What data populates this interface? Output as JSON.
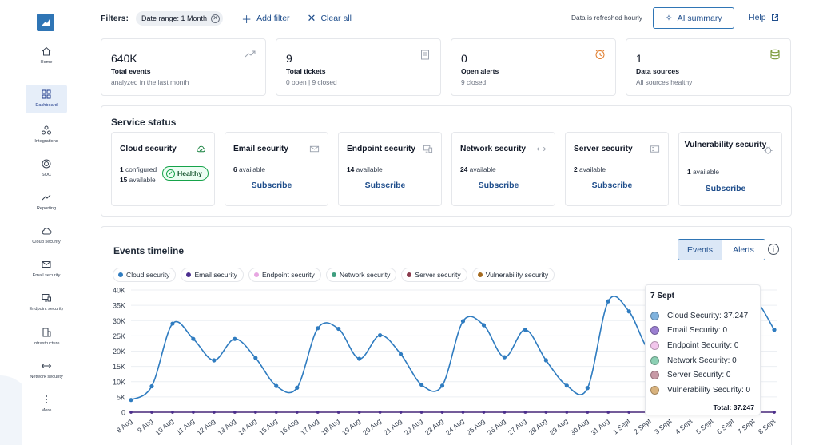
{
  "sidebar": {
    "items": [
      {
        "key": "home",
        "label": "Home",
        "icon": "home-icon"
      },
      {
        "key": "dashboard",
        "label": "Dashboard",
        "icon": "dashboard-icon",
        "active": true
      },
      {
        "key": "integrations",
        "label": "Integrations",
        "icon": "integrations-icon"
      },
      {
        "key": "soc",
        "label": "SOC",
        "icon": "soc-icon"
      },
      {
        "key": "reporting",
        "label": "Reporting",
        "icon": "reporting-icon"
      },
      {
        "key": "cloud",
        "label": "Cloud security",
        "icon": "cloud-icon"
      },
      {
        "key": "email",
        "label": "Email security",
        "icon": "mail-icon"
      },
      {
        "key": "endpoint",
        "label": "Endpoint security",
        "icon": "monitor-icon"
      },
      {
        "key": "infrastructure",
        "label": "Infrastructure",
        "icon": "building-icon"
      },
      {
        "key": "network",
        "label": "Network security",
        "icon": "network-icon"
      },
      {
        "key": "more",
        "label": "More",
        "icon": "more-icon"
      }
    ]
  },
  "topbar": {
    "filters_label": "Filters:",
    "chip_label": "Date range: 1 Month",
    "add_filter": "Add filter",
    "clear_all": "Clear all",
    "refresh_note": "Data is refreshed hourly",
    "ai_summary": "AI summary",
    "help": "Help"
  },
  "stats": [
    {
      "value": "640K",
      "name": "Total events",
      "sub": "analyzed in the last month",
      "icon": "trend-icon"
    },
    {
      "value": "9",
      "name": "Total tickets",
      "sub": "0 open | 9 closed",
      "icon": "clipboard-icon"
    },
    {
      "value": "0",
      "name": "Open alerts",
      "sub": "9 closed",
      "icon": "alarm-icon"
    },
    {
      "value": "1",
      "name": "Data sources",
      "sub": "All sources healthy",
      "icon": "database-icon"
    }
  ],
  "service_status": {
    "title": "Service status",
    "subscribe_label": "Subscribe",
    "cloud": {
      "title": "Cloud security",
      "configured_count": "1",
      "configured_text": "configured",
      "available_count": "15",
      "available_text": "available",
      "badge": "Healthy"
    },
    "services": [
      {
        "title": "Email security",
        "count": "6",
        "text": "available",
        "icon": "mail-icon"
      },
      {
        "title": "Endpoint security",
        "count": "14",
        "text": "available",
        "icon": "monitor-icon"
      },
      {
        "title": "Network security",
        "count": "24",
        "text": "available",
        "icon": "network-icon"
      },
      {
        "title": "Server security",
        "count": "2",
        "text": "available",
        "icon": "server-icon"
      },
      {
        "title": "Vulnerability security",
        "count": "1",
        "text": "available",
        "icon": "bug-icon"
      }
    ]
  },
  "timeline": {
    "title": "Events timeline",
    "toggle_events": "Events",
    "toggle_alerts": "Alerts",
    "info_glyph": "i",
    "tooltip": {
      "title": "7 Sept",
      "rows": [
        {
          "label": "Cloud Security: 37.247",
          "color": "#7fb2dd"
        },
        {
          "label": "Email Security: 0",
          "color": "#9b7fd1"
        },
        {
          "label": "Endpoint Security: 0",
          "color": "#f2c6ec"
        },
        {
          "label": "Network Security: 0",
          "color": "#8ccfb3"
        },
        {
          "label": "Server Security: 0",
          "color": "#c79aa6"
        },
        {
          "label": "Vulnerability Security: 0",
          "color": "#d8b27d"
        }
      ],
      "total": "Total: 37.247"
    }
  },
  "chart_data": {
    "type": "line",
    "title": "",
    "xlabel": "",
    "ylabel": "",
    "ylim": [
      0,
      40000
    ],
    "yticks": [
      "0",
      "5K",
      "10K",
      "15K",
      "20K",
      "25K",
      "30K",
      "35K",
      "40K"
    ],
    "grid": true,
    "legend_position": "top-left",
    "categories": [
      "8 Aug",
      "9 Aug",
      "10 Aug",
      "11 Aug",
      "12 Aug",
      "13 Aug",
      "14 Aug",
      "15 Aug",
      "16 Aug",
      "17 Aug",
      "18 Aug",
      "19 Aug",
      "20 Aug",
      "21 Aug",
      "22 Aug",
      "23 Aug",
      "24 Aug",
      "25 Aug",
      "26 Aug",
      "27 Aug",
      "28 Aug",
      "29 Aug",
      "30 Aug",
      "31 Aug",
      "1 Sept",
      "2 Sept",
      "3 Sept",
      "4 Sept",
      "5 Sept",
      "6 Sept",
      "7 Sept",
      "8 Sept"
    ],
    "series": [
      {
        "name": "Cloud security",
        "color": "#2f7cc0",
        "values": [
          4000,
          8500,
          29000,
          24000,
          17000,
          24000,
          17800,
          8600,
          8000,
          27500,
          27300,
          17500,
          25200,
          19000,
          9000,
          8700,
          29800,
          28500,
          18000,
          27000,
          17000,
          8700,
          7900,
          36300,
          33000,
          20000,
          22000,
          30000,
          32000,
          35000,
          37247,
          27000
        ]
      },
      {
        "name": "Email security",
        "color": "#4b2e8f",
        "values": [
          0,
          0,
          0,
          0,
          0,
          0,
          0,
          0,
          0,
          0,
          0,
          0,
          0,
          0,
          0,
          0,
          0,
          0,
          0,
          0,
          0,
          0,
          0,
          0,
          0,
          0,
          0,
          0,
          0,
          0,
          0,
          0
        ]
      },
      {
        "name": "Endpoint security",
        "color": "#e7a6e1",
        "values": [
          0,
          0,
          0,
          0,
          0,
          0,
          0,
          0,
          0,
          0,
          0,
          0,
          0,
          0,
          0,
          0,
          0,
          0,
          0,
          0,
          0,
          0,
          0,
          0,
          0,
          0,
          0,
          0,
          0,
          0,
          0,
          0
        ]
      },
      {
        "name": "Network security",
        "color": "#3f9e7f",
        "values": [
          0,
          0,
          0,
          0,
          0,
          0,
          0,
          0,
          0,
          0,
          0,
          0,
          0,
          0,
          0,
          0,
          0,
          0,
          0,
          0,
          0,
          0,
          0,
          0,
          0,
          0,
          0,
          0,
          0,
          0,
          0,
          0
        ]
      },
      {
        "name": "Server security",
        "color": "#8a3a4c",
        "values": [
          0,
          0,
          0,
          0,
          0,
          0,
          0,
          0,
          0,
          0,
          0,
          0,
          0,
          0,
          0,
          0,
          0,
          0,
          0,
          0,
          0,
          0,
          0,
          0,
          0,
          0,
          0,
          0,
          0,
          0,
          0,
          0
        ]
      },
      {
        "name": "Vulnerability security",
        "color": "#a56a1e",
        "values": [
          0,
          0,
          0,
          0,
          0,
          0,
          0,
          0,
          0,
          0,
          0,
          0,
          0,
          0,
          0,
          0,
          0,
          0,
          0,
          0,
          0,
          0,
          0,
          0,
          0,
          0,
          0,
          0,
          0,
          0,
          0,
          0
        ]
      }
    ]
  }
}
